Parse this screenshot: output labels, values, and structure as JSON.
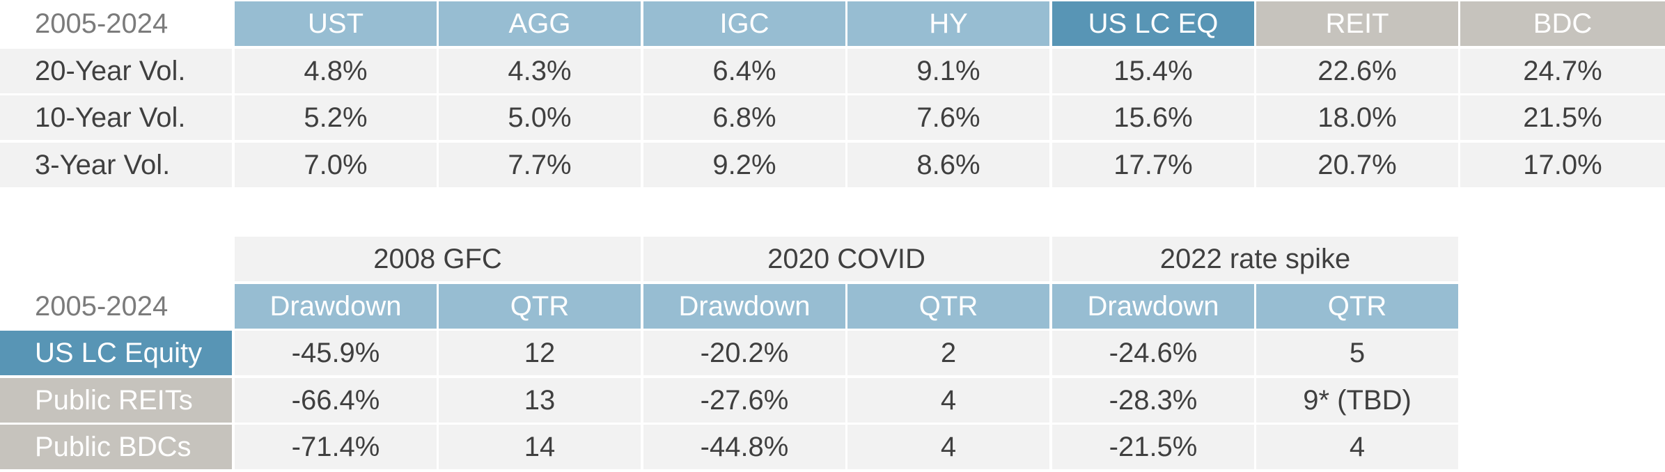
{
  "vol_table": {
    "period_label": "2005-2024",
    "headers": [
      "UST",
      "AGG",
      "IGC",
      "HY",
      "US LC EQ",
      "REIT",
      "BDC"
    ],
    "rows": [
      {
        "label": "20-Year Vol.",
        "values": [
          "4.8%",
          "4.3%",
          "6.4%",
          "9.1%",
          "15.4%",
          "22.6%",
          "24.7%"
        ]
      },
      {
        "label": "10-Year Vol.",
        "values": [
          "5.2%",
          "5.0%",
          "6.8%",
          "7.6%",
          "15.6%",
          "18.0%",
          "21.5%"
        ]
      },
      {
        "label": "3-Year Vol.",
        "values": [
          "7.0%",
          "7.7%",
          "9.2%",
          "8.6%",
          "17.7%",
          "20.7%",
          "17.0%"
        ]
      }
    ]
  },
  "drawdown_table": {
    "period_label": "2005-2024",
    "groups": [
      "2008 GFC",
      "2020 COVID",
      "2022 rate spike"
    ],
    "subheaders": [
      "Drawdown",
      "QTR",
      "Drawdown",
      "QTR",
      "Drawdown",
      "QTR"
    ],
    "rows": [
      {
        "label": "US LC Equity",
        "values": [
          "-45.9%",
          "12",
          "-20.2%",
          "2",
          "-24.6%",
          "5"
        ]
      },
      {
        "label": "Public REITs",
        "values": [
          "-66.4%",
          "13",
          "-27.6%",
          "4",
          "-28.3%",
          "9* (TBD)"
        ]
      },
      {
        "label": "Public BDCs",
        "values": [
          "-71.4%",
          "14",
          "-44.8%",
          "4",
          "-21.5%",
          "4"
        ]
      }
    ]
  },
  "colors": {
    "header_blue": "#97bdd2",
    "header_dark_blue": "#5895b5",
    "header_grey": "#c6c3bd",
    "cell_bg": "#f2f2f2"
  }
}
